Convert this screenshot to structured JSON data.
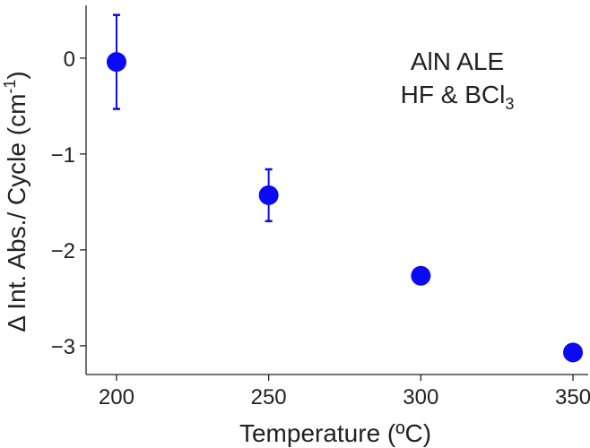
{
  "chart_data": {
    "type": "scatter",
    "title": "",
    "xlabel": "Temperature (ºC)",
    "ylabel": "Δ Int. Abs./ Cycle (cm⁻¹)",
    "ylabel_parts": {
      "main": "Δ Int. Abs./ Cycle (cm",
      "sup": "-1",
      "close": ")"
    },
    "xlim": [
      190,
      355
    ],
    "ylim": [
      -3.3,
      0.55
    ],
    "x_ticks": [
      200,
      250,
      300,
      350
    ],
    "y_ticks": [
      0,
      -1,
      -2,
      -3
    ],
    "x_tick_labels": [
      "200",
      "250",
      "300",
      "350"
    ],
    "y_tick_labels": [
      "0",
      "−1",
      "−2",
      "−3"
    ],
    "grid": false,
    "legend": "none",
    "series": [
      {
        "color": "#0a0af5",
        "points": [
          {
            "x": 200,
            "y": -0.04,
            "err_low": -0.53,
            "err_high": 0.45
          },
          {
            "x": 250,
            "y": -1.43,
            "err_low": -1.7,
            "err_high": -1.16
          },
          {
            "x": 300,
            "y": -2.27
          },
          {
            "x": 350,
            "y": -3.07
          }
        ]
      }
    ],
    "annotation": {
      "line1": "AlN ALE",
      "line2_main": "HF & BCl",
      "line2_sub": "3"
    }
  }
}
